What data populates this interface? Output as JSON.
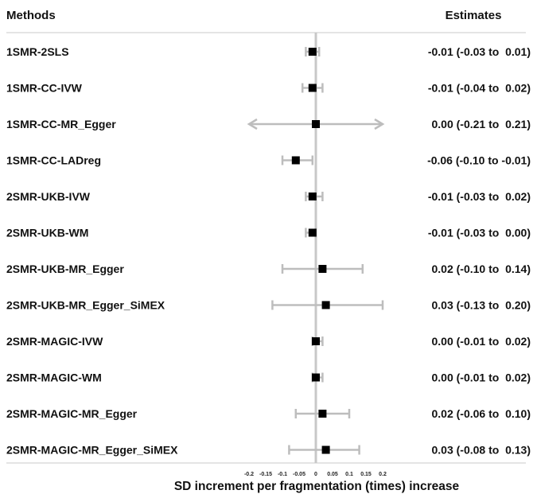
{
  "chart_data": {
    "type": "forest",
    "columns": {
      "methods": "Methods",
      "estimates": "Estimates"
    },
    "xlabel": "SD increment per fragmentation (times) increase",
    "xlim": [
      -0.2,
      0.2
    ],
    "x_ticks": [
      -0.2,
      -0.15,
      -0.1,
      -0.05,
      0,
      0.05,
      0.1,
      0.15,
      0.2
    ],
    "x_tick_labels": [
      "-0.2",
      "-0.15",
      "-0.1",
      "-0.05",
      "0",
      "0.05",
      "0.1",
      "0.15",
      "0.2"
    ],
    "reference_line": 0,
    "colors": {
      "ci": "#bdbdbd",
      "point": "#000000",
      "ref_line": "#c8c8c8",
      "text": "#111111"
    },
    "rows": [
      {
        "method": "1SMR-2SLS",
        "estimate": -0.01,
        "lower": -0.03,
        "upper": 0.01,
        "label": "-0.01 (-0.03 to  0.01)"
      },
      {
        "method": "1SMR-CC-IVW",
        "estimate": -0.01,
        "lower": -0.04,
        "upper": 0.02,
        "label": "-0.01 (-0.04 to  0.02)"
      },
      {
        "method": "1SMR-CC-MR_Egger",
        "estimate": 0.0,
        "lower": -0.21,
        "upper": 0.21,
        "label": "0.00 (-0.21 to  0.21)",
        "truncated": true
      },
      {
        "method": "1SMR-CC-LADreg",
        "estimate": -0.06,
        "lower": -0.1,
        "upper": -0.01,
        "label": "-0.06 (-0.10 to -0.01)"
      },
      {
        "method": "2SMR-UKB-IVW",
        "estimate": -0.01,
        "lower": -0.03,
        "upper": 0.02,
        "label": "-0.01 (-0.03 to  0.02)"
      },
      {
        "method": "2SMR-UKB-WM",
        "estimate": -0.01,
        "lower": -0.03,
        "upper": 0.0,
        "label": "-0.01 (-0.03 to  0.00)"
      },
      {
        "method": "2SMR-UKB-MR_Egger",
        "estimate": 0.02,
        "lower": -0.1,
        "upper": 0.14,
        "label": "0.02 (-0.10 to  0.14)"
      },
      {
        "method": "2SMR-UKB-MR_Egger_SiMEX",
        "estimate": 0.03,
        "lower": -0.13,
        "upper": 0.2,
        "label": "0.03 (-0.13 to  0.20)"
      },
      {
        "method": "2SMR-MAGIC-IVW",
        "estimate": 0.0,
        "lower": -0.01,
        "upper": 0.02,
        "label": "0.00 (-0.01 to  0.02)"
      },
      {
        "method": "2SMR-MAGIC-WM",
        "estimate": 0.0,
        "lower": -0.01,
        "upper": 0.02,
        "label": "0.00 (-0.01 to  0.02)"
      },
      {
        "method": "2SMR-MAGIC-MR_Egger",
        "estimate": 0.02,
        "lower": -0.06,
        "upper": 0.1,
        "label": "0.02 (-0.06 to  0.10)"
      },
      {
        "method": "2SMR-MAGIC-MR_Egger_SiMEX",
        "estimate": 0.03,
        "lower": -0.08,
        "upper": 0.13,
        "label": "0.03 (-0.08 to  0.13)"
      }
    ]
  }
}
